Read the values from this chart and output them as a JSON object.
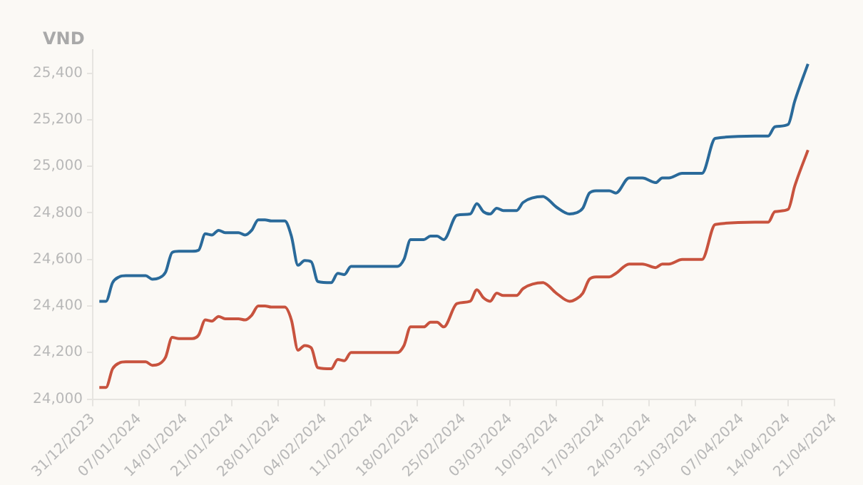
{
  "chart_data": {
    "type": "line",
    "ylabel": "VND",
    "x": [
      "2024-01-01",
      "2024-01-02",
      "2024-01-03",
      "2024-01-04",
      "2024-01-05",
      "2024-01-08",
      "2024-01-09",
      "2024-01-10",
      "2024-01-11",
      "2024-01-12",
      "2024-01-13",
      "2024-01-15",
      "2024-01-16",
      "2024-01-17",
      "2024-01-18",
      "2024-01-19",
      "2024-01-20",
      "2024-01-22",
      "2024-01-23",
      "2024-01-24",
      "2024-01-25",
      "2024-01-26",
      "2024-01-27",
      "2024-01-29",
      "2024-01-30",
      "2024-01-31",
      "2024-02-01",
      "2024-02-02",
      "2024-02-03",
      "2024-02-05",
      "2024-02-06",
      "2024-02-07",
      "2024-02-08",
      "2024-02-15",
      "2024-02-16",
      "2024-02-17",
      "2024-02-19",
      "2024-02-20",
      "2024-02-21",
      "2024-02-22",
      "2024-02-24",
      "2024-02-26",
      "2024-02-27",
      "2024-02-28",
      "2024-02-29",
      "2024-03-01",
      "2024-03-02",
      "2024-03-04",
      "2024-03-05",
      "2024-03-08",
      "2024-03-10",
      "2024-03-12",
      "2024-03-13",
      "2024-03-14",
      "2024-03-15",
      "2024-03-16",
      "2024-03-18",
      "2024-03-19",
      "2024-03-21",
      "2024-03-23",
      "2024-03-25",
      "2024-03-26",
      "2024-03-27",
      "2024-03-29",
      "2024-04-01",
      "2024-04-03",
      "2024-04-09",
      "2024-04-11",
      "2024-04-12",
      "2024-04-14",
      "2024-04-15",
      "2024-04-17"
    ],
    "series": [
      {
        "color": "#2a6a9a",
        "values": [
          24420,
          24420,
          24500,
          24525,
          24530,
          24530,
          24515,
          24520,
          24545,
          24630,
          24635,
          24635,
          24640,
          24710,
          24705,
          24725,
          24715,
          24715,
          24705,
          24725,
          24770,
          24770,
          24765,
          24765,
          24700,
          24575,
          24595,
          24590,
          24505,
          24500,
          24540,
          24535,
          24570,
          24570,
          24600,
          24685,
          24685,
          24700,
          24700,
          24685,
          24790,
          24795,
          24840,
          24805,
          24795,
          24820,
          24810,
          24810,
          24845,
          24870,
          24825,
          24795,
          24800,
          24820,
          24885,
          24895,
          24895,
          24885,
          24950,
          24950,
          24930,
          24950,
          24950,
          24970,
          24970,
          25120,
          25130,
          25130,
          25170,
          25180,
          25280,
          25440
        ]
      },
      {
        "color": "#c8533e",
        "values": [
          24050,
          24050,
          24130,
          24155,
          24160,
          24160,
          24145,
          24150,
          24180,
          24265,
          24260,
          24260,
          24275,
          24340,
          24335,
          24355,
          24345,
          24345,
          24340,
          24360,
          24400,
          24400,
          24395,
          24395,
          24340,
          24210,
          24230,
          24220,
          24135,
          24130,
          24170,
          24165,
          24200,
          24200,
          24230,
          24310,
          24310,
          24330,
          24330,
          24310,
          24410,
          24420,
          24470,
          24435,
          24420,
          24455,
          24445,
          24445,
          24475,
          24500,
          24455,
          24420,
          24430,
          24455,
          24515,
          24525,
          24525,
          24540,
          24580,
          24580,
          24565,
          24580,
          24580,
          24600,
          24600,
          24750,
          24760,
          24760,
          24805,
          24815,
          24915,
          25070
        ]
      }
    ],
    "xlim": [
      "2023-12-31",
      "2024-04-21"
    ],
    "xticks": [
      {
        "value": "2023-12-31",
        "label": "31/12/2023"
      },
      {
        "value": "2024-01-07",
        "label": "07/01/2024"
      },
      {
        "value": "2024-01-14",
        "label": "14/01/2024"
      },
      {
        "value": "2024-01-21",
        "label": "21/01/2024"
      },
      {
        "value": "2024-01-28",
        "label": "28/01/2024"
      },
      {
        "value": "2024-02-04",
        "label": "04/02/2024"
      },
      {
        "value": "2024-02-11",
        "label": "11/02/2024"
      },
      {
        "value": "2024-02-18",
        "label": "18/02/2024"
      },
      {
        "value": "2024-02-25",
        "label": "25/02/2024"
      },
      {
        "value": "2024-03-03",
        "label": "03/03/2024"
      },
      {
        "value": "2024-03-10",
        "label": "10/03/2024"
      },
      {
        "value": "2024-03-17",
        "label": "17/03/2024"
      },
      {
        "value": "2024-03-24",
        "label": "24/03/2024"
      },
      {
        "value": "2024-03-31",
        "label": "31/03/2024"
      },
      {
        "value": "2024-04-07",
        "label": "07/04/2024"
      },
      {
        "value": "2024-04-14",
        "label": "14/04/2024"
      },
      {
        "value": "2024-04-21",
        "label": "21/04/2024"
      }
    ],
    "ylim": [
      24000,
      25500
    ],
    "yticks": [
      {
        "value": 24000,
        "label": "24,000"
      },
      {
        "value": 24200,
        "label": "24,200"
      },
      {
        "value": 24400,
        "label": "24,400"
      },
      {
        "value": 24600,
        "label": "24,600"
      },
      {
        "value": 24800,
        "label": "24,800"
      },
      {
        "value": 25000,
        "label": "25,000"
      },
      {
        "value": 25200,
        "label": "25,200"
      },
      {
        "value": 25400,
        "label": "25,400"
      }
    ],
    "grid": false,
    "legend": false
  }
}
